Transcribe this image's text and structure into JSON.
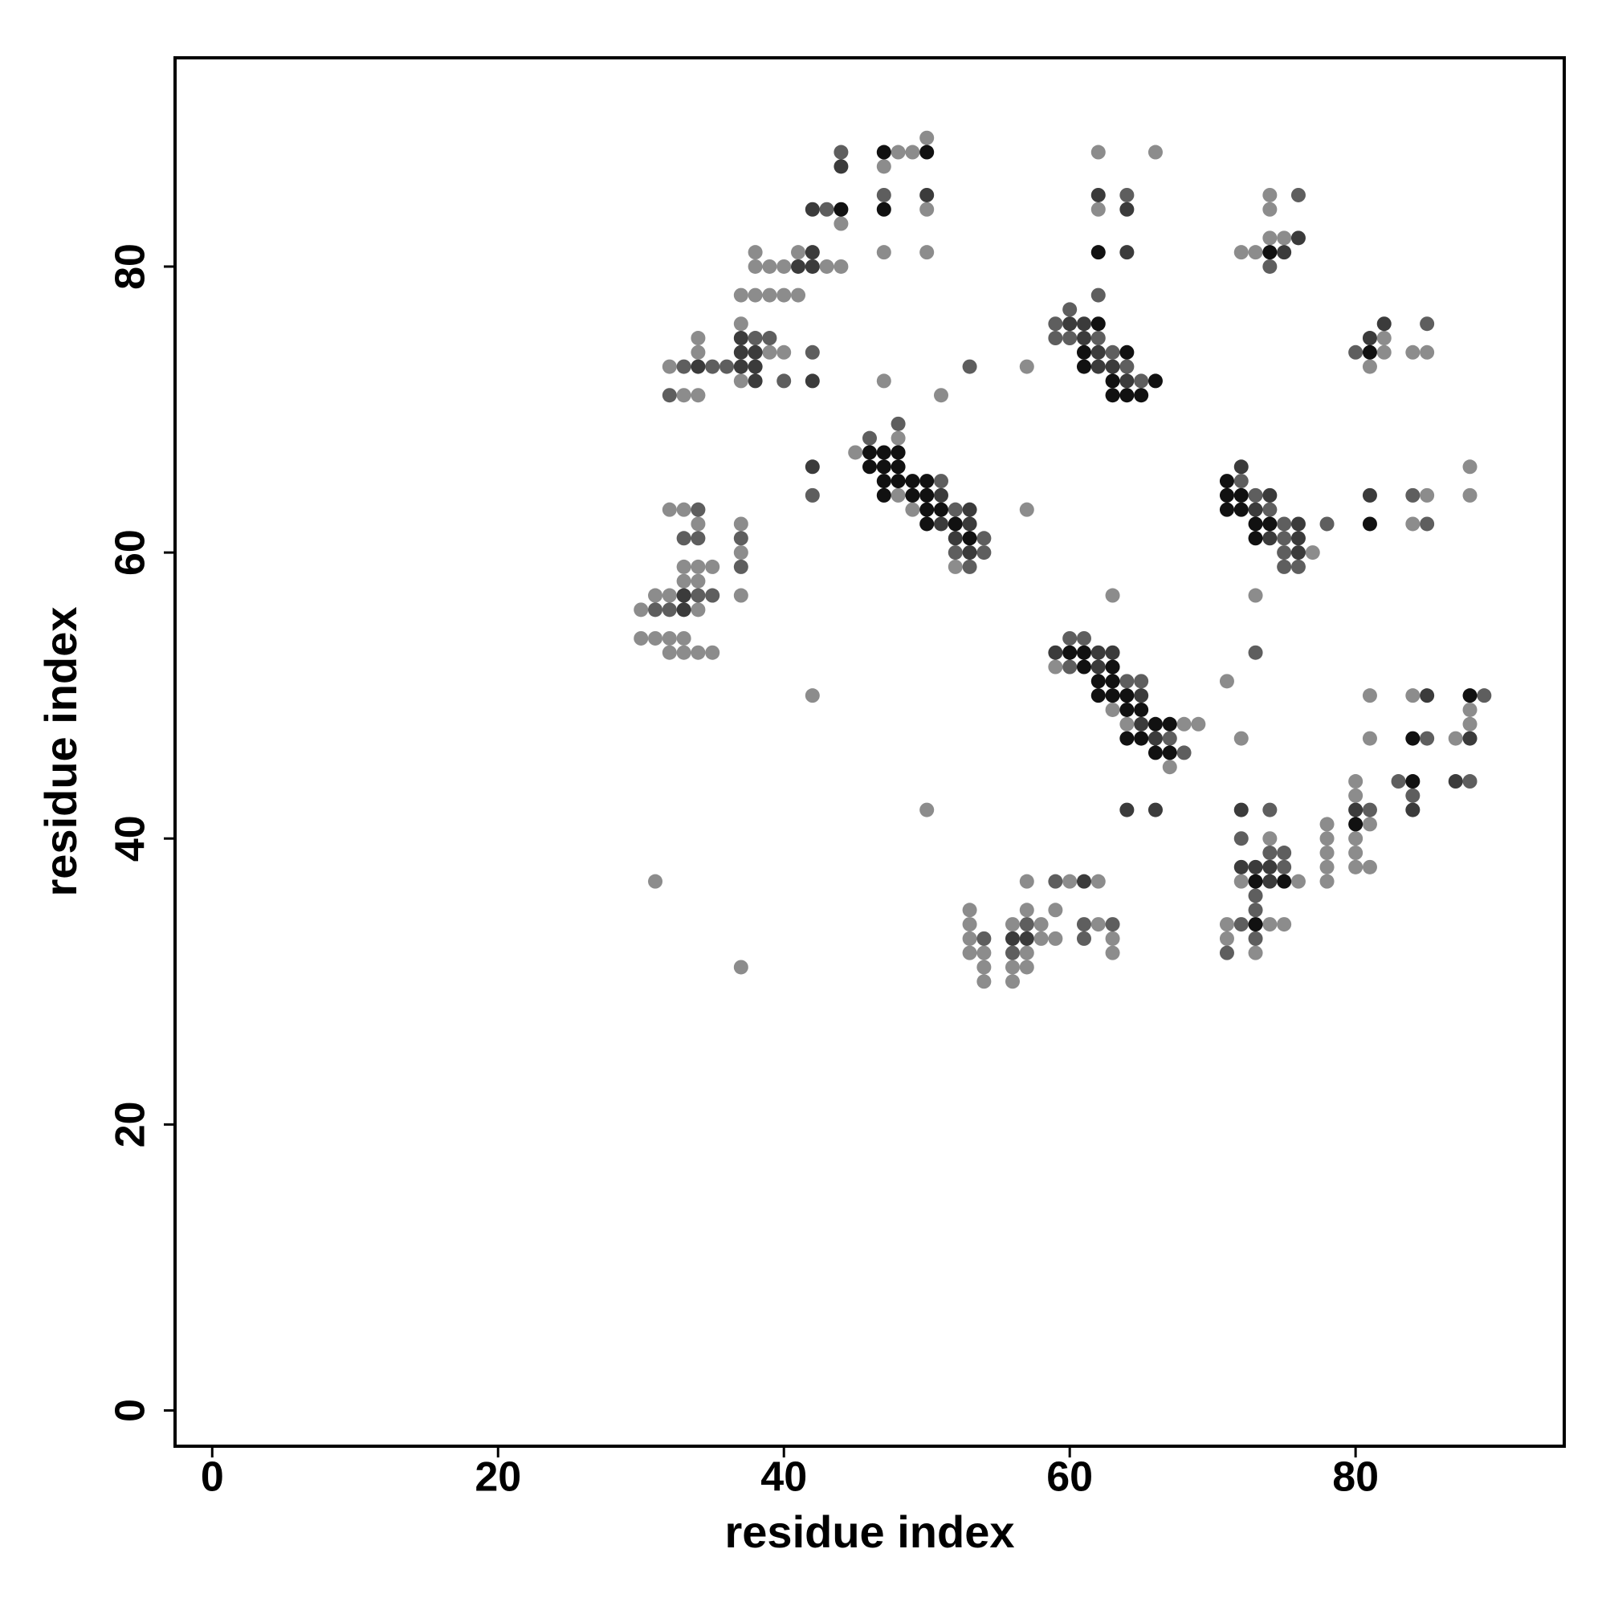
{
  "chart_data": {
    "type": "scatter",
    "x_label": "residue index",
    "y_label": "residue index",
    "xlim": [
      -2.6,
      94.6
    ],
    "ylim": [
      -2.5,
      94.6
    ],
    "xticks": [
      0,
      20,
      40,
      60,
      80
    ],
    "yticks": [
      0,
      20,
      40,
      60,
      80
    ],
    "series": [
      {
        "color": "#8c8c8c",
        "x": [
          48,
          49,
          50,
          47,
          50,
          44,
          47,
          50,
          38,
          41,
          38,
          39,
          40,
          43,
          44,
          37,
          38,
          39,
          40,
          41,
          37,
          39,
          40,
          37,
          34,
          34,
          32,
          33,
          34,
          47,
          51,
          57,
          45,
          48,
          48,
          49,
          52,
          57,
          32,
          33,
          34,
          37,
          37,
          33,
          34,
          35,
          33,
          34,
          31,
          32,
          30,
          34,
          37,
          30,
          31,
          32,
          33,
          32,
          33,
          34,
          35,
          42,
          62,
          66,
          62,
          59,
          63,
          64,
          68,
          69,
          67,
          63,
          50,
          57,
          60,
          62,
          53,
          57,
          59,
          53,
          56,
          58,
          62,
          53,
          58,
          59,
          63,
          53,
          54,
          57,
          63,
          54,
          56,
          57,
          54,
          56,
          31,
          37,
          74,
          74,
          72,
          73,
          74,
          75,
          82,
          82,
          84,
          85,
          81,
          77,
          88,
          85,
          88,
          84,
          73,
          71,
          81,
          84,
          88,
          88,
          72,
          81,
          87,
          80,
          80,
          78,
          81,
          74,
          78,
          80,
          78,
          80,
          78,
          80,
          81,
          72,
          76,
          78,
          71,
          74,
          75,
          71,
          73
        ],
        "y": [
          88,
          88,
          89,
          87,
          84,
          83,
          81,
          81,
          81,
          81,
          80,
          80,
          80,
          80,
          80,
          78,
          78,
          78,
          78,
          78,
          76,
          74,
          74,
          72,
          75,
          74,
          73,
          71,
          71,
          72,
          71,
          73,
          67,
          68,
          64,
          63,
          59,
          63,
          63,
          63,
          62,
          62,
          60,
          59,
          59,
          59,
          58,
          58,
          57,
          57,
          56,
          56,
          57,
          54,
          54,
          54,
          54,
          53,
          53,
          53,
          53,
          50,
          88,
          88,
          84,
          52,
          49,
          48,
          48,
          48,
          45,
          57,
          42,
          37,
          37,
          37,
          35,
          35,
          35,
          34,
          34,
          34,
          34,
          33,
          33,
          33,
          33,
          32,
          32,
          32,
          32,
          31,
          31,
          31,
          30,
          30,
          37,
          31,
          85,
          84,
          81,
          81,
          82,
          82,
          75,
          74,
          74,
          74,
          73,
          60,
          66,
          64,
          64,
          62,
          57,
          51,
          50,
          50,
          49,
          48,
          47,
          47,
          47,
          44,
          43,
          41,
          41,
          40,
          40,
          40,
          39,
          39,
          38,
          38,
          38,
          37,
          37,
          37,
          34,
          34,
          34,
          33,
          32
        ]
      },
      {
        "color": "#5e5e5e",
        "x": [
          44,
          47,
          43,
          38,
          39,
          40,
          33,
          35,
          36,
          32,
          42,
          53,
          46,
          48,
          51,
          52,
          54,
          52,
          54,
          53,
          42,
          34,
          33,
          34,
          37,
          37,
          34,
          35,
          31,
          32,
          64,
          62,
          60,
          59,
          59,
          60,
          62,
          63,
          64,
          65,
          60,
          61,
          60,
          64,
          65,
          67,
          68,
          59,
          57,
          61,
          63,
          54,
          61,
          56,
          76,
          74,
          85,
          80,
          72,
          73,
          74,
          75,
          78,
          75,
          75,
          75,
          76,
          84,
          85,
          73,
          89,
          85,
          83,
          88,
          84,
          74,
          81,
          72,
          74,
          75,
          75,
          73,
          73,
          72,
          73,
          71
        ],
        "y": [
          88,
          85,
          84,
          75,
          75,
          72,
          73,
          73,
          73,
          71,
          74,
          73,
          68,
          69,
          65,
          63,
          61,
          60,
          60,
          59,
          64,
          63,
          61,
          61,
          61,
          59,
          57,
          57,
          56,
          56,
          85,
          78,
          77,
          76,
          75,
          75,
          75,
          74,
          73,
          72,
          54,
          54,
          52,
          51,
          51,
          47,
          46,
          37,
          34,
          34,
          34,
          33,
          33,
          32,
          85,
          80,
          76,
          74,
          65,
          64,
          63,
          62,
          62,
          61,
          60,
          59,
          59,
          64,
          62,
          53,
          50,
          47,
          44,
          44,
          43,
          42,
          42,
          40,
          39,
          39,
          38,
          36,
          35,
          34,
          33,
          32
        ]
      },
      {
        "color": "#3b3b3b",
        "x": [
          44,
          50,
          42,
          42,
          41,
          42,
          37,
          37,
          38,
          37,
          38,
          38,
          34,
          42,
          53,
          51,
          53,
          52,
          53,
          51,
          42,
          33,
          33,
          62,
          64,
          64,
          60,
          61,
          61,
          62,
          62,
          63,
          64,
          59,
          62,
          63,
          62,
          65,
          65,
          66,
          64,
          66,
          61,
          56,
          57,
          75,
          76,
          82,
          81,
          72,
          74,
          73,
          76,
          74,
          76,
          76,
          81,
          85,
          88,
          87,
          72,
          80,
          84,
          72,
          73,
          74,
          74
        ],
        "y": [
          87,
          85,
          84,
          81,
          80,
          80,
          75,
          74,
          74,
          73,
          73,
          72,
          73,
          72,
          63,
          62,
          62,
          61,
          60,
          64,
          66,
          57,
          56,
          85,
          84,
          81,
          76,
          76,
          75,
          74,
          73,
          73,
          72,
          53,
          53,
          53,
          52,
          50,
          48,
          47,
          42,
          42,
          37,
          33,
          33,
          81,
          82,
          76,
          75,
          66,
          64,
          63,
          62,
          61,
          61,
          60,
          64,
          50,
          47,
          44,
          42,
          42,
          42,
          38,
          38,
          38,
          37
        ]
      },
      {
        "color": "#111111",
        "x": [
          47,
          50,
          47,
          44,
          46,
          47,
          48,
          46,
          47,
          48,
          47,
          48,
          49,
          50,
          47,
          49,
          50,
          50,
          51,
          50,
          52,
          53,
          62,
          62,
          61,
          64,
          61,
          63,
          66,
          63,
          64,
          65,
          60,
          61,
          61,
          63,
          62,
          63,
          62,
          63,
          64,
          64,
          65,
          66,
          67,
          64,
          65,
          66,
          67,
          74,
          81,
          71,
          71,
          72,
          71,
          72,
          73,
          74,
          73,
          81,
          88,
          84,
          84,
          80,
          73,
          75,
          73
        ],
        "y": [
          88,
          88,
          84,
          84,
          67,
          67,
          67,
          66,
          66,
          66,
          65,
          65,
          65,
          65,
          64,
          64,
          64,
          63,
          63,
          62,
          62,
          61,
          81,
          76,
          74,
          74,
          73,
          72,
          72,
          71,
          71,
          71,
          53,
          53,
          52,
          52,
          51,
          51,
          50,
          50,
          50,
          49,
          49,
          48,
          48,
          47,
          47,
          46,
          46,
          81,
          74,
          65,
          64,
          64,
          63,
          63,
          62,
          62,
          61,
          62,
          50,
          47,
          44,
          41,
          37,
          37,
          34
        ]
      }
    ]
  }
}
